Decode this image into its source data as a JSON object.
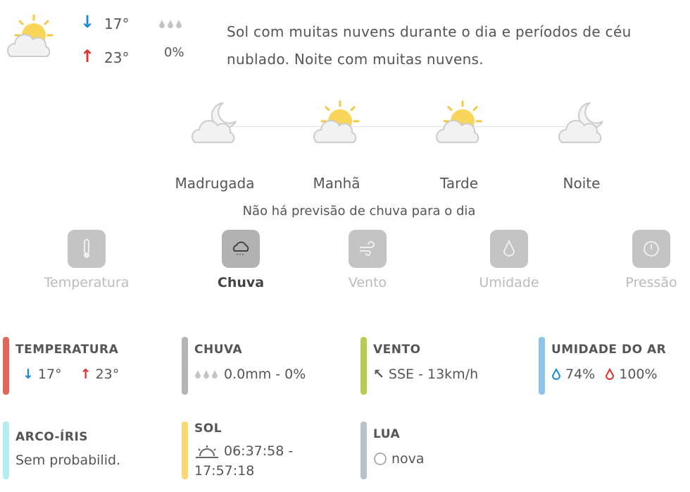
{
  "summary": {
    "icon": "sun-cloud-icon",
    "min": "17°",
    "max": "23°",
    "rain_prob": "0%",
    "text": "Sol com muitas nuvens durante o dia e períodos de céu nublado. Noite com muitas nuvens."
  },
  "periods": [
    {
      "label": "Madrugada",
      "icon": "moon-cloud-icon"
    },
    {
      "label": "Manhã",
      "icon": "sun-cloud-icon"
    },
    {
      "label": "Tarde",
      "icon": "sun-cloud-icon"
    },
    {
      "label": "Noite",
      "icon": "moon-cloud-icon"
    }
  ],
  "rain_note": "Não há previsão de chuva para o dia",
  "tabs": [
    {
      "label": "Temperatura",
      "icon": "thermometer-icon"
    },
    {
      "label": "Chuva",
      "icon": "rain-cloud-icon",
      "active": true
    },
    {
      "label": "Vento",
      "icon": "wind-icon"
    },
    {
      "label": "Umidade",
      "icon": "drop-icon"
    },
    {
      "label": "Pressão",
      "icon": "gauge-icon"
    }
  ],
  "cards": {
    "temperatura": {
      "title": "TEMPERATURA",
      "min": "17°",
      "max": "23°",
      "color": "#e0685a"
    },
    "chuva": {
      "title": "CHUVA",
      "value": "0.0mm - 0%",
      "color": "#b5b5b5"
    },
    "vento": {
      "title": "VENTO",
      "value": "SSE - 13km/h",
      "color": "#b8cc52"
    },
    "umidade": {
      "title": "UMIDADE DO AR",
      "min": "74%",
      "max": "100%",
      "color": "#8cc4ec"
    },
    "arcoiris": {
      "title": "ARCO-ÍRIS",
      "value": "Sem probabilid.",
      "color": "#b4ecf0"
    },
    "sol": {
      "title": "SOL",
      "value": "06:37:58 - 17:57:18",
      "color": "#f7d872"
    },
    "lua": {
      "title": "LUA",
      "value": "nova",
      "color": "#b8c2cc"
    }
  },
  "colors": {
    "min_arrow": "#1e88d8",
    "max_arrow": "#e52e2e"
  }
}
